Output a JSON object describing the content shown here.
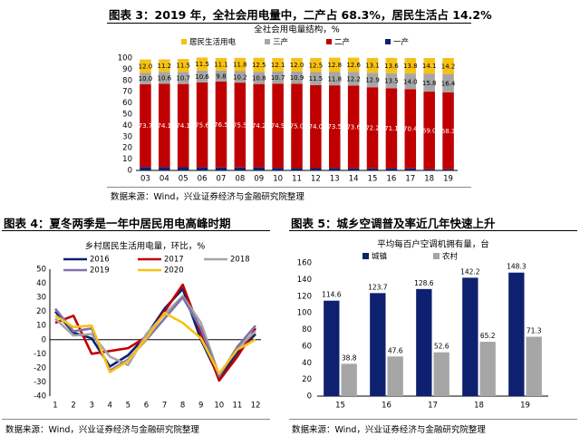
{
  "figure3": {
    "caption": "图表 3：2019 年，全社会用电量中，二产占 68.3%，居民生活占 14.2%",
    "source": "数据来源：Wind，兴业证券经济与金融研究院整理"
  },
  "figure4": {
    "caption": "图表 4：夏冬两季是一年中居民用电高峰时期",
    "source": "数据来源：Wind，兴业证券经济与金融研究院整理"
  },
  "figure5": {
    "caption": "图表 5：城乡空调普及率近几年快速上升",
    "source": "数据来源：Wind，兴业证券经济与金融研究院整理"
  },
  "colors": {
    "居民生活用电": "#f6c215",
    "三产": "#a6a6a6",
    "二产": "#c00000",
    "一产": "#0e2170",
    "2016": "#0e2170",
    "2017": "#c00000",
    "2018": "#a6a6a6",
    "2019": "#7f72ad",
    "2020": "#f6c215",
    "城镇": "#0e2170",
    "农村": "#a6a6a6"
  },
  "chart_data": [
    {
      "id": "fig3",
      "type": "bar",
      "stacked": true,
      "title": "全社会用电量结构，%",
      "categories": [
        "03",
        "04",
        "05",
        "06",
        "07",
        "08",
        "09",
        "10",
        "11",
        "12",
        "13",
        "14",
        "15",
        "16",
        "17",
        "18",
        "19"
      ],
      "ylim": [
        0,
        100
      ],
      "yticks": [
        0,
        10,
        20,
        30,
        40,
        50,
        60,
        70,
        80,
        90,
        100
      ],
      "legend_position": "top",
      "series": [
        {
          "name": "一产",
          "values": [
            3.0,
            2.9,
            2.8,
            2.7,
            2.6,
            2.6,
            2.7,
            2.3,
            2.1,
            2.0,
            2.2,
            1.9,
            1.8,
            1.9,
            1.8,
            1.1,
            1.1
          ],
          "labels": [
            "",
            "",
            "",
            "",
            "",
            "",
            "",
            "",
            "",
            "",
            "",
            "",
            "",
            "",
            "",
            "",
            ""
          ]
        },
        {
          "name": "二产",
          "values": [
            73.7,
            74.1,
            74.1,
            75.6,
            76.5,
            75.5,
            74.2,
            74.9,
            75.0,
            74.0,
            73.5,
            73.6,
            72.2,
            71.1,
            70.4,
            69.0,
            68.3
          ],
          "labels": [
            "73.7",
            "74.1",
            "74.1",
            "75.6",
            "76.5",
            "75.5",
            "74.2",
            "74.9",
            "75.0",
            "74.0",
            "73.5",
            "73.6",
            "72.2",
            "71.1",
            "70.4",
            "69.0",
            "68.3"
          ]
        },
        {
          "name": "三产",
          "values": [
            10.0,
            10.6,
            10.7,
            10.6,
            9.8,
            10.2,
            10.8,
            10.7,
            10.9,
            11.5,
            11.8,
            12.2,
            12.9,
            13.5,
            14.0,
            15.8,
            16.4
          ],
          "labels": [
            "10.0",
            "10.6",
            "10.7",
            "10.6",
            "9.8",
            "10.2",
            "10.8",
            "10.7",
            "10.9",
            "11.5",
            "11.8",
            "12.2",
            "12.9",
            "13.5",
            "14.0",
            "15.8",
            "16.4"
          ]
        },
        {
          "name": "居民生活用电",
          "values": [
            12.0,
            11.2,
            11.5,
            11.5,
            11.1,
            11.8,
            12.5,
            12.1,
            12.0,
            12.5,
            12.8,
            12.6,
            13.1,
            13.6,
            13.8,
            14.1,
            14.2
          ],
          "labels": [
            "12.0",
            "11.2",
            "11.5",
            "11.5",
            "11.1",
            "11.8",
            "12.5",
            "12.1",
            "12.0",
            "12.5",
            "12.8",
            "12.6",
            "13.1",
            "13.6",
            "13.8",
            "14.1",
            "14.2"
          ]
        }
      ]
    },
    {
      "id": "fig4",
      "type": "line",
      "title": "乡村居民生活用电量，环比，%",
      "x": [
        1,
        2,
        3,
        4,
        5,
        6,
        7,
        8,
        9,
        10,
        11,
        12
      ],
      "xticks": [
        "1",
        "2",
        "3",
        "4",
        "5",
        "6",
        "7",
        "8",
        "9",
        "10",
        "11",
        "12"
      ],
      "ylim": [
        -40,
        50
      ],
      "yticks": [
        -40,
        -30,
        -20,
        -10,
        0,
        10,
        20,
        30,
        40,
        50
      ],
      "legend_position": "top-left",
      "series": [
        {
          "name": "2016",
          "values": [
            20,
            5,
            1,
            -19,
            -11,
            3,
            22,
            36,
            0,
            -27,
            -9,
            4
          ]
        },
        {
          "name": "2017",
          "values": [
            12,
            17,
            -10,
            -8,
            -6,
            2,
            20,
            39,
            5,
            -29,
            -12,
            8
          ]
        },
        {
          "name": "2018",
          "values": [
            15,
            3,
            4,
            -12,
            -18,
            4,
            18,
            31,
            12,
            -25,
            -6,
            6
          ]
        },
        {
          "name": "2019",
          "values": [
            22,
            6,
            8,
            -22,
            -14,
            0,
            15,
            30,
            8,
            -26,
            -5,
            10
          ]
        },
        {
          "name": "2020",
          "values": [
            17,
            9,
            10,
            -23,
            -15,
            1,
            19,
            12,
            1,
            -24,
            -7,
            0
          ]
        }
      ]
    },
    {
      "id": "fig5",
      "type": "bar",
      "title": "平均每百户空调机拥有量，台",
      "categories": [
        "15",
        "16",
        "17",
        "18",
        "19"
      ],
      "ylim": [
        0,
        160
      ],
      "yticks": [
        0,
        20,
        40,
        60,
        80,
        100,
        120,
        140,
        160
      ],
      "legend_position": "top",
      "series": [
        {
          "name": "城镇",
          "values": [
            114.6,
            123.7,
            128.6,
            142.2,
            148.3
          ],
          "labels": [
            "114.6",
            "123.7",
            "128.6",
            "142.2",
            "148.3"
          ]
        },
        {
          "name": "农村",
          "values": [
            38.8,
            47.6,
            52.6,
            65.2,
            71.3
          ],
          "labels": [
            "38.8",
            "47.6",
            "52.6",
            "65.2",
            "71.3"
          ]
        }
      ]
    }
  ]
}
